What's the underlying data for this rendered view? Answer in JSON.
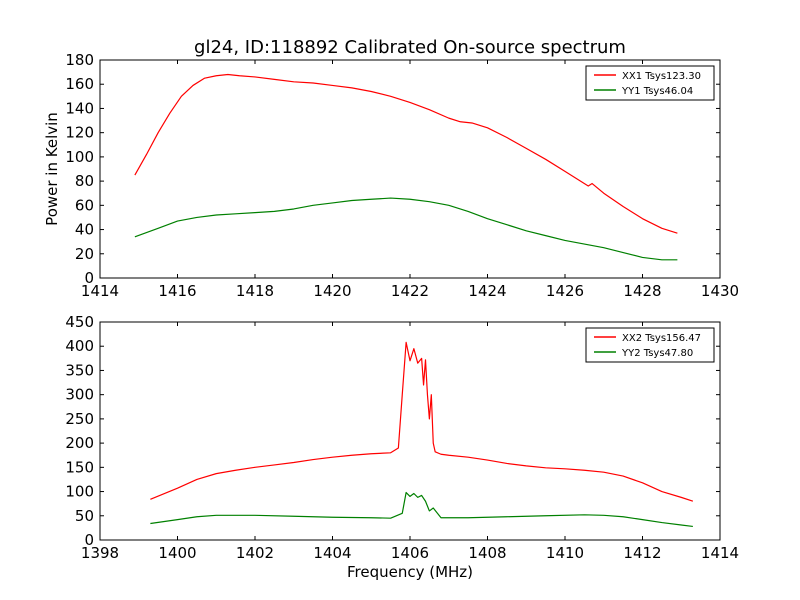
{
  "title": "gl24, ID:118892 Calibrated On-source spectrum",
  "chart_data": [
    {
      "type": "line",
      "title": "gl24, ID:118892 Calibrated On-source spectrum",
      "xlabel": "",
      "ylabel": "Power in Kelvin",
      "xlim": [
        1414,
        1430
      ],
      "ylim": [
        0,
        180
      ],
      "xticks": [
        "1414",
        "1416",
        "1418",
        "1420",
        "1422",
        "1424",
        "1426",
        "1428",
        "1430"
      ],
      "yticks": [
        "0",
        "20",
        "40",
        "60",
        "80",
        "100",
        "120",
        "140",
        "160",
        "180"
      ],
      "grid": false,
      "legend_position": "top-right",
      "series": [
        {
          "name": "XX1 Tsys123.30",
          "color": "#ff0000",
          "x": [
            1414.9,
            1415.2,
            1415.5,
            1415.8,
            1416.1,
            1416.4,
            1416.7,
            1417.0,
            1417.3,
            1417.6,
            1418.0,
            1418.5,
            1419.0,
            1419.5,
            1420.0,
            1420.5,
            1421.0,
            1421.5,
            1422.0,
            1422.5,
            1423.0,
            1423.3,
            1423.6,
            1424.0,
            1424.5,
            1425.0,
            1425.5,
            1426.0,
            1426.4,
            1426.6,
            1426.7,
            1427.0,
            1427.5,
            1428.0,
            1428.5,
            1428.9
          ],
          "values": [
            85,
            102,
            120,
            136,
            150,
            159,
            165,
            167,
            168,
            167,
            166,
            164,
            162,
            161,
            159,
            157,
            154,
            150,
            145,
            139,
            132,
            129,
            128,
            124,
            116,
            107,
            98,
            88,
            80,
            76,
            78,
            70,
            59,
            49,
            41,
            37
          ]
        },
        {
          "name": "YY1 Tsys46.04",
          "color": "#008000",
          "x": [
            1414.9,
            1415.5,
            1416.0,
            1416.5,
            1417.0,
            1417.5,
            1418.0,
            1418.5,
            1419.0,
            1419.5,
            1420.0,
            1420.5,
            1421.0,
            1421.5,
            1422.0,
            1422.5,
            1423.0,
            1423.5,
            1424.0,
            1424.5,
            1425.0,
            1425.5,
            1426.0,
            1426.5,
            1427.0,
            1427.5,
            1428.0,
            1428.5,
            1428.9
          ],
          "values": [
            34,
            41,
            47,
            50,
            52,
            53,
            54,
            55,
            57,
            60,
            62,
            64,
            65,
            66,
            65,
            63,
            60,
            55,
            49,
            44,
            39,
            35,
            31,
            28,
            25,
            21,
            17,
            15,
            15
          ]
        }
      ]
    },
    {
      "type": "line",
      "title": "",
      "xlabel": "Frequency (MHz)",
      "ylabel": "",
      "xlim": [
        1398,
        1414
      ],
      "ylim": [
        0,
        450
      ],
      "xticks": [
        "1398",
        "1400",
        "1402",
        "1404",
        "1406",
        "1408",
        "1410",
        "1412",
        "1414"
      ],
      "yticks": [
        "0",
        "50",
        "100",
        "150",
        "200",
        "250",
        "300",
        "350",
        "400",
        "450"
      ],
      "grid": false,
      "legend_position": "top-right",
      "series": [
        {
          "name": "XX2 Tsys156.47",
          "color": "#ff0000",
          "x": [
            1399.3,
            1400.0,
            1400.5,
            1401.0,
            1401.5,
            1402.0,
            1402.5,
            1403.0,
            1403.5,
            1404.0,
            1404.5,
            1405.0,
            1405.5,
            1405.7,
            1405.8,
            1405.9,
            1406.0,
            1406.1,
            1406.2,
            1406.3,
            1406.35,
            1406.4,
            1406.45,
            1406.5,
            1406.55,
            1406.6,
            1406.65,
            1406.8,
            1407.0,
            1407.5,
            1408.0,
            1408.5,
            1409.0,
            1409.5,
            1410.0,
            1410.5,
            1411.0,
            1411.5,
            1412.0,
            1412.5,
            1413.0,
            1413.3
          ],
          "values": [
            84,
            107,
            125,
            137,
            144,
            150,
            155,
            160,
            166,
            171,
            175,
            178,
            180,
            190,
            300,
            408,
            370,
            395,
            365,
            375,
            320,
            372,
            300,
            250,
            300,
            200,
            182,
            177,
            175,
            171,
            165,
            158,
            153,
            149,
            147,
            144,
            140,
            132,
            118,
            100,
            88,
            80
          ]
        },
        {
          "name": "YY2 Tsys47.80",
          "color": "#008000",
          "x": [
            1399.3,
            1400.0,
            1400.5,
            1401.0,
            1402.0,
            1403.0,
            1404.0,
            1405.0,
            1405.5,
            1405.8,
            1405.9,
            1406.0,
            1406.1,
            1406.2,
            1406.3,
            1406.4,
            1406.5,
            1406.6,
            1406.8,
            1407.5,
            1408.5,
            1409.5,
            1410.5,
            1411.0,
            1411.5,
            1412.0,
            1412.5,
            1413.0,
            1413.3
          ],
          "values": [
            34,
            42,
            48,
            51,
            51,
            49,
            47,
            46,
            45,
            55,
            98,
            90,
            96,
            88,
            92,
            80,
            60,
            66,
            46,
            46,
            48,
            50,
            52,
            51,
            48,
            42,
            36,
            31,
            28
          ]
        }
      ]
    }
  ]
}
